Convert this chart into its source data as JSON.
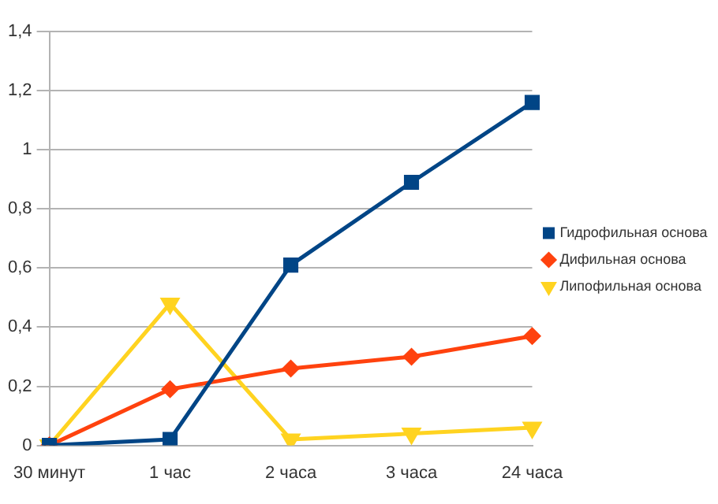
{
  "chart_data": {
    "type": "line",
    "categories": [
      "30 минут",
      "1 час",
      "2 часа",
      "3 часа",
      "24 часа"
    ],
    "series": [
      {
        "name": "Гидрофильная основа",
        "color": "#004586",
        "marker": "square",
        "values": [
          0,
          0.02,
          0.61,
          0.89,
          1.16
        ]
      },
      {
        "name": "Дифильная основа",
        "color": "#ff420e",
        "marker": "diamond",
        "values": [
          0,
          0.19,
          0.26,
          0.3,
          0.37
        ]
      },
      {
        "name": "Липофильная основа",
        "color": "#ffd320",
        "marker": "triangle",
        "values": [
          0,
          0.48,
          0.02,
          0.04,
          0.06
        ]
      }
    ],
    "ylim": [
      0,
      1.4
    ],
    "yticks": [
      0,
      {
        "value": 0.2,
        "label": "0,2"
      },
      {
        "value": 0.4,
        "label": "0,4"
      },
      {
        "value": 0.6,
        "label": "0,6"
      },
      {
        "value": 0.8,
        "label": "0,8"
      },
      1,
      {
        "value": 1.2,
        "label": "1,2"
      },
      {
        "value": 1.4,
        "label": "1,4"
      }
    ],
    "grid": "y",
    "legend": "right"
  }
}
